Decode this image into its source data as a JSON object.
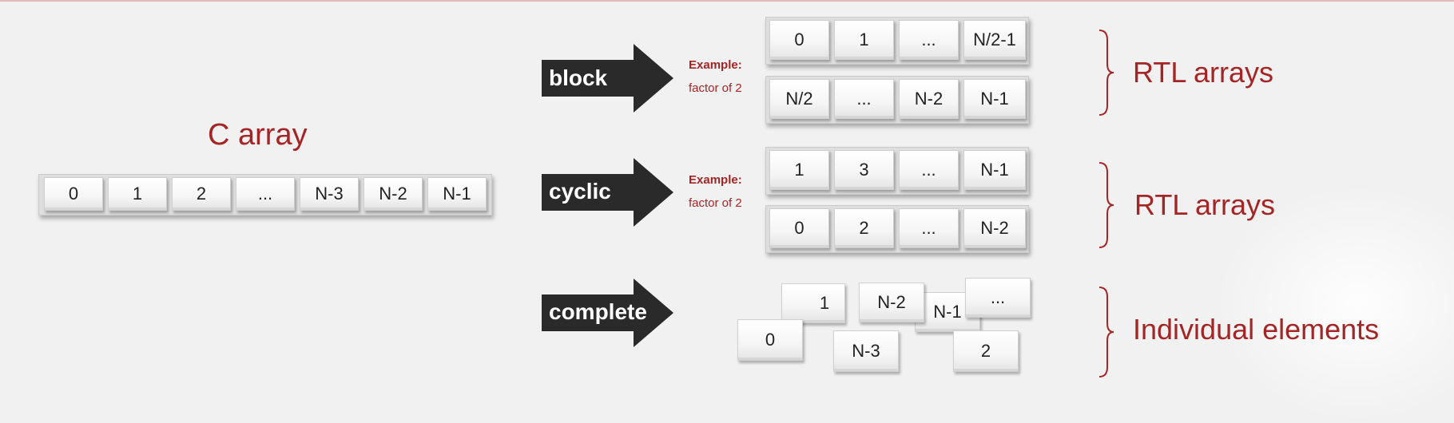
{
  "c_array": {
    "title": "C array",
    "cells": [
      "0",
      "1",
      "2",
      "...",
      "N-3",
      "N-2",
      "N-1"
    ]
  },
  "block": {
    "arrow_label": "block",
    "example_label": "Example:",
    "example_factor": "factor of 2",
    "row1": [
      "0",
      "1",
      "...",
      "N/2-1"
    ],
    "row2": [
      "N/2",
      "...",
      "N-2",
      "N-1"
    ],
    "result_label": "RTL arrays"
  },
  "cyclic": {
    "arrow_label": "cyclic",
    "example_label": "Example:",
    "example_factor": "factor of 2",
    "row1": [
      "1",
      "3",
      "...",
      "N-1"
    ],
    "row2": [
      "0",
      "2",
      "...",
      "N-2"
    ],
    "result_label": "RTL arrays"
  },
  "complete": {
    "arrow_label": "complete",
    "elements": [
      "1",
      "N-2",
      "N-1",
      "...",
      "0",
      "N-3",
      "2"
    ],
    "result_label": "Individual elements"
  },
  "colors": {
    "accent": "#a42525",
    "arrow": "#2a2a2a"
  }
}
